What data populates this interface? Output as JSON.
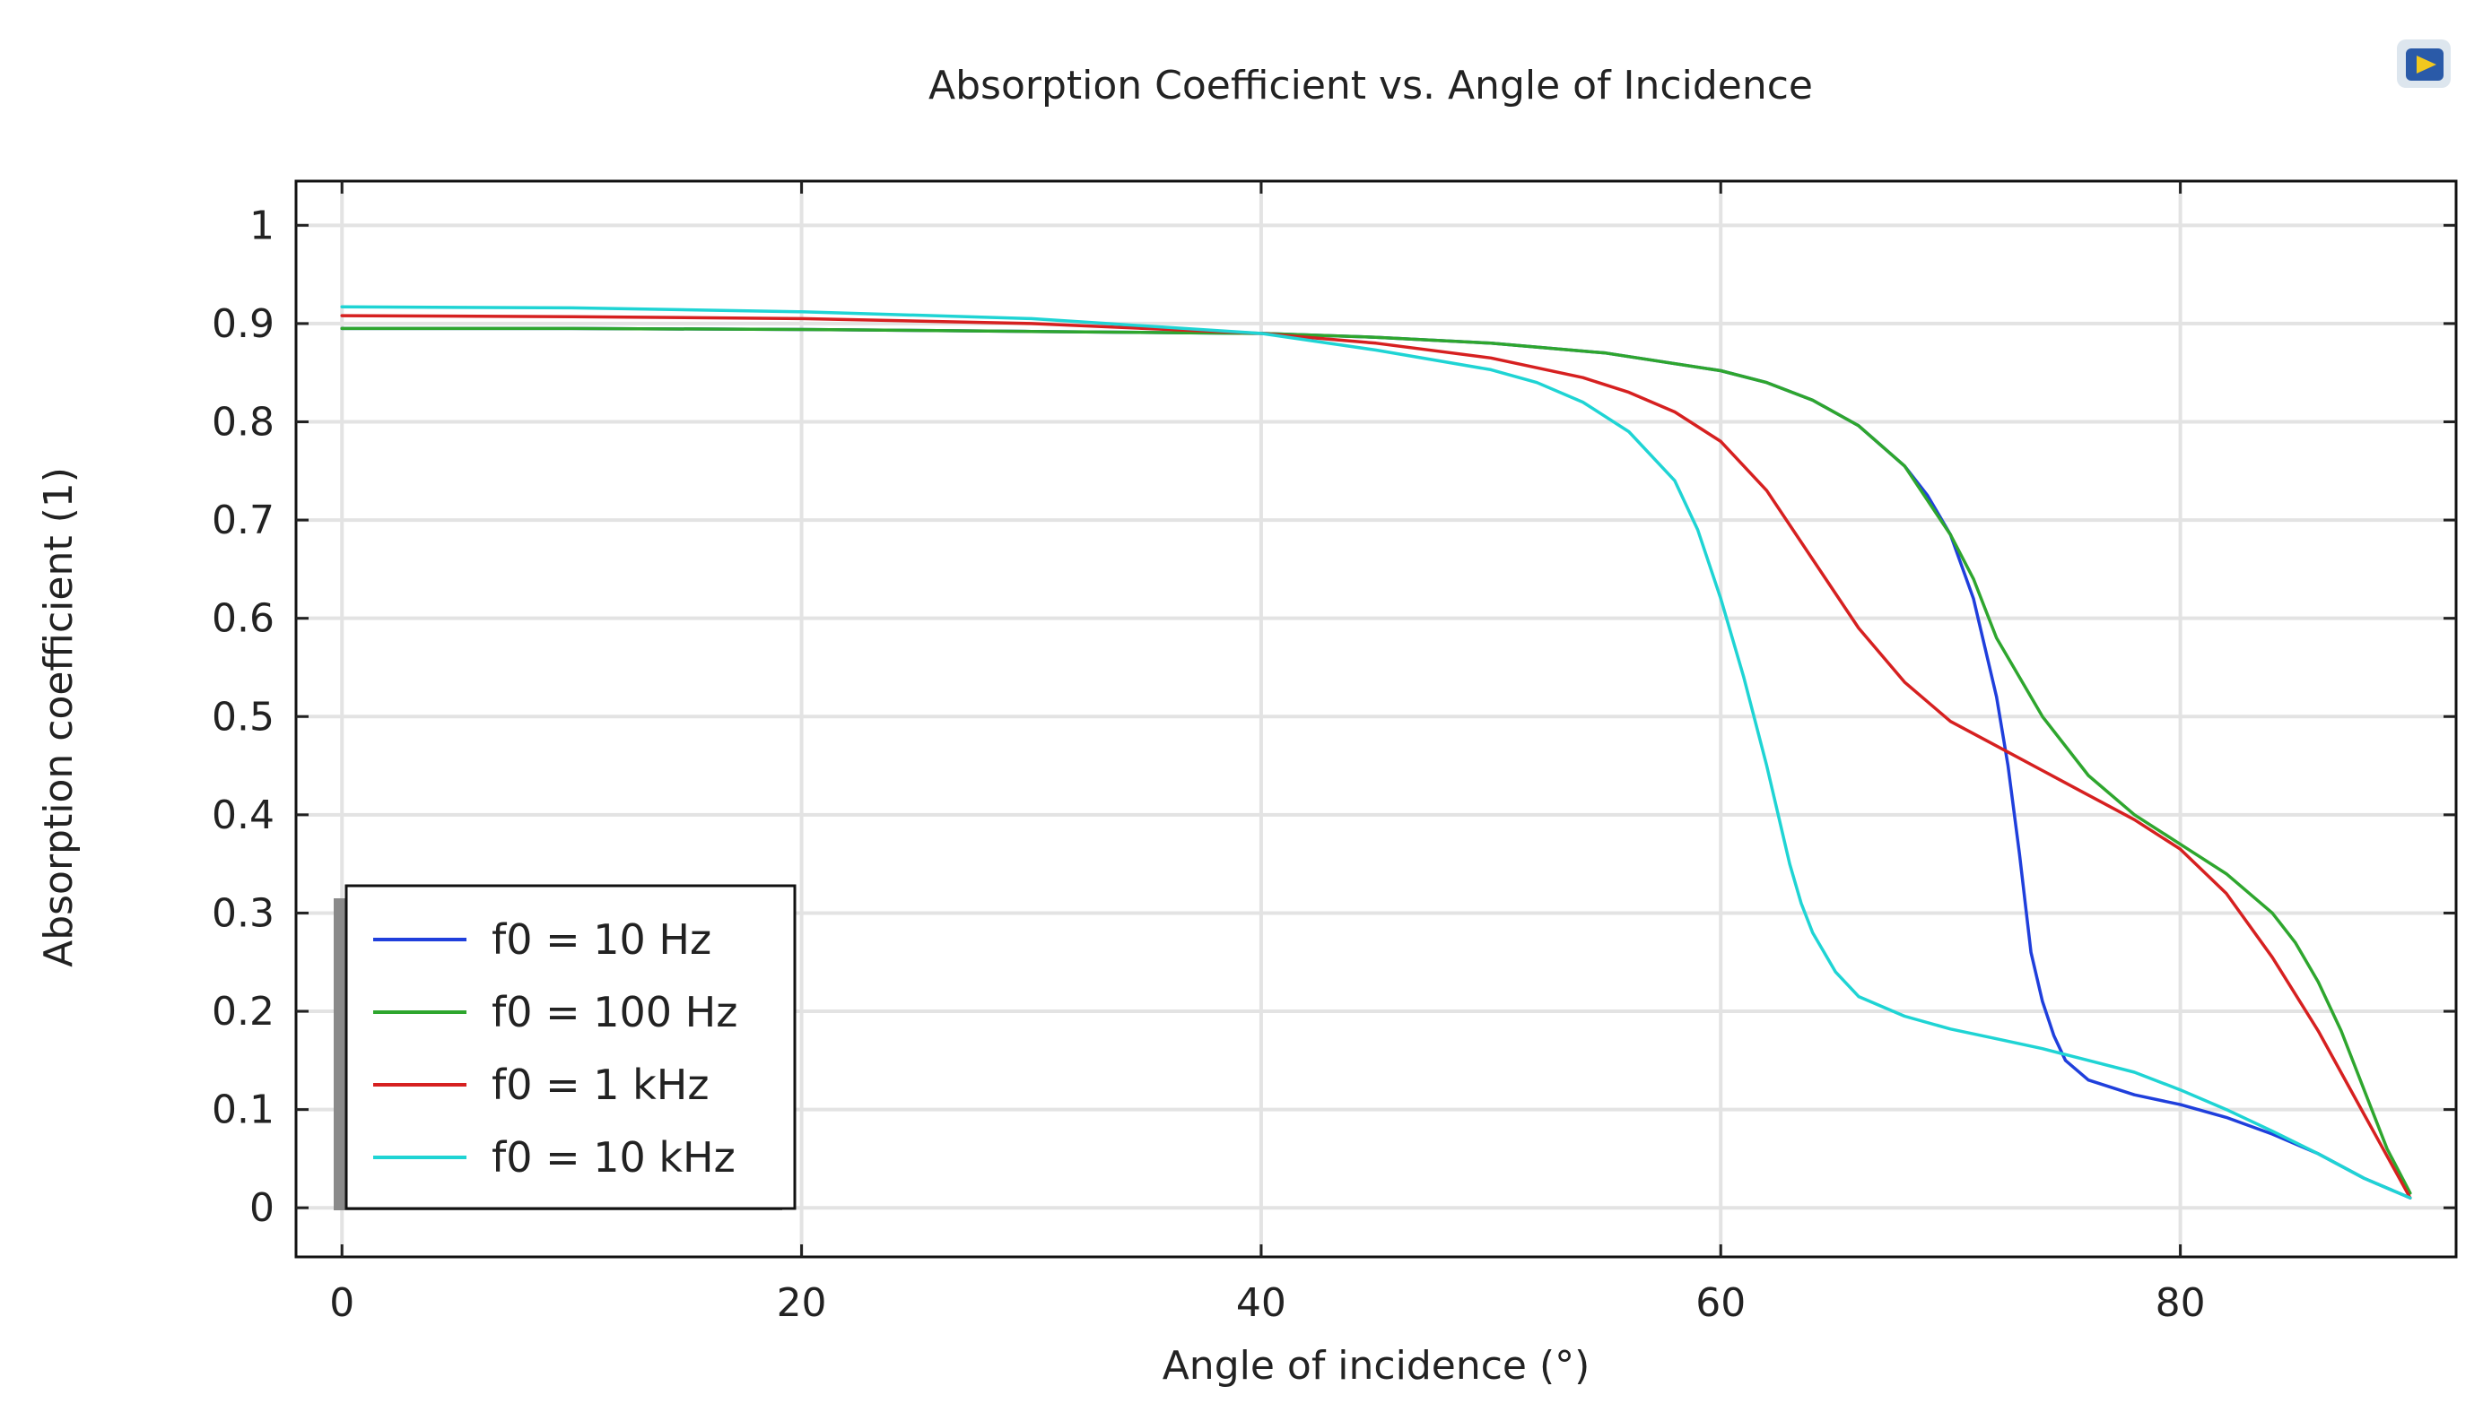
{
  "chart_data": {
    "type": "line",
    "title": "Absorption Coefficient vs. Angle of Incidence",
    "xlabel": "Angle of incidence (°)",
    "ylabel": "Absorption coefficient (1)",
    "xlim": [
      -2,
      92
    ],
    "ylim": [
      -0.05,
      1.045
    ],
    "xticks": [
      0,
      20,
      40,
      60,
      80
    ],
    "xtick_labels": [
      "0",
      "20",
      "40",
      "60",
      "80"
    ],
    "yticks": [
      0,
      0.1,
      0.2,
      0.3,
      0.4,
      0.5,
      0.6,
      0.7,
      0.8,
      0.9,
      1
    ],
    "ytick_labels": [
      "0",
      "0.1",
      "0.2",
      "0.3",
      "0.4",
      "0.5",
      "0.6",
      "0.7",
      "0.8",
      "0.9",
      "1"
    ],
    "grid": true,
    "legend_position": "bottom-left",
    "series": [
      {
        "name": "f0 = 10 Hz",
        "color": "#1f3fdc",
        "x": [
          0,
          10,
          20,
          30,
          40,
          45,
          50,
          55,
          60,
          62,
          64,
          66,
          68,
          69,
          70,
          71,
          72,
          72.5,
          73,
          73.5,
          74,
          74.5,
          75,
          76,
          78,
          80,
          82,
          84,
          86,
          88,
          90
        ],
        "y": [
          0.895,
          0.895,
          0.894,
          0.892,
          0.89,
          0.886,
          0.88,
          0.87,
          0.852,
          0.84,
          0.822,
          0.796,
          0.755,
          0.725,
          0.685,
          0.62,
          0.52,
          0.45,
          0.36,
          0.26,
          0.21,
          0.175,
          0.15,
          0.13,
          0.115,
          0.105,
          0.092,
          0.075,
          0.055,
          0.03,
          0.01
        ]
      },
      {
        "name": "f0 = 100 Hz",
        "color": "#2ea62e",
        "x": [
          0,
          10,
          20,
          30,
          40,
          45,
          50,
          55,
          60,
          62,
          64,
          66,
          68,
          70,
          71,
          72,
          74,
          76,
          78,
          80,
          82,
          84,
          85,
          86,
          87,
          88,
          89,
          90
        ],
        "y": [
          0.895,
          0.895,
          0.894,
          0.892,
          0.89,
          0.886,
          0.88,
          0.87,
          0.852,
          0.84,
          0.822,
          0.796,
          0.755,
          0.685,
          0.64,
          0.58,
          0.5,
          0.44,
          0.4,
          0.37,
          0.34,
          0.3,
          0.27,
          0.23,
          0.18,
          0.12,
          0.06,
          0.015
        ]
      },
      {
        "name": "f0 = 1 kHz",
        "color": "#d62020",
        "x": [
          0,
          10,
          20,
          30,
          40,
          45,
          50,
          54,
          56,
          58,
          60,
          62,
          64,
          66,
          68,
          70,
          72,
          74,
          76,
          78,
          80,
          82,
          84,
          86,
          88,
          90
        ],
        "y": [
          0.908,
          0.907,
          0.905,
          0.9,
          0.89,
          0.88,
          0.865,
          0.845,
          0.83,
          0.81,
          0.78,
          0.73,
          0.66,
          0.59,
          0.535,
          0.495,
          0.47,
          0.445,
          0.42,
          0.395,
          0.365,
          0.32,
          0.255,
          0.18,
          0.095,
          0.01
        ]
      },
      {
        "name": "f0 = 10 kHz",
        "color": "#1fd4d4",
        "x": [
          0,
          10,
          20,
          30,
          40,
          45,
          50,
          52,
          54,
          56,
          58,
          59,
          60,
          61,
          62,
          62.5,
          63,
          63.5,
          64,
          65,
          66,
          68,
          70,
          72,
          74,
          76,
          78,
          80,
          82,
          84,
          86,
          88,
          90
        ],
        "y": [
          0.917,
          0.916,
          0.912,
          0.905,
          0.89,
          0.873,
          0.853,
          0.84,
          0.82,
          0.79,
          0.74,
          0.69,
          0.62,
          0.54,
          0.45,
          0.4,
          0.35,
          0.31,
          0.28,
          0.24,
          0.215,
          0.195,
          0.182,
          0.172,
          0.162,
          0.15,
          0.138,
          0.12,
          0.1,
          0.078,
          0.055,
          0.03,
          0.01
        ]
      }
    ]
  }
}
